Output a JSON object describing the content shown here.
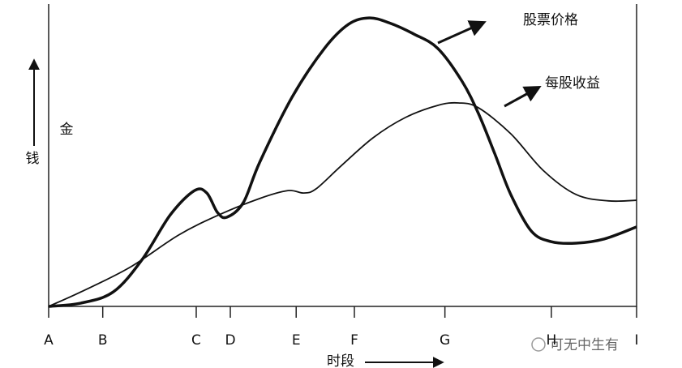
{
  "chart_data": {
    "type": "line",
    "x_label": "时段",
    "y_label": "钱",
    "annotation": "金",
    "watermark": "可无中生有",
    "xlim": [
      0,
      100
    ],
    "ylim": [
      0,
      100
    ],
    "xticks": [
      {
        "value": 0,
        "label": "A"
      },
      {
        "value": 9.2,
        "label": "B"
      },
      {
        "value": 25.1,
        "label": "C"
      },
      {
        "value": 30.9,
        "label": "D"
      },
      {
        "value": 42.1,
        "label": "E"
      },
      {
        "value": 52,
        "label": "F"
      },
      {
        "value": 67.4,
        "label": "G"
      },
      {
        "value": 85.5,
        "label": "H"
      },
      {
        "value": 100,
        "label": "I"
      }
    ],
    "series": [
      {
        "name": "股票价格",
        "color": "#111111",
        "width": 3.5,
        "x": [
          0,
          5.5,
          11.0,
          15.9,
          20.7,
          24.8,
          26.9,
          28.7,
          30.3,
          33.1,
          35.9,
          41.4,
          46.9,
          51.0,
          54.5,
          57.9,
          62.1,
          66.2,
          70.3,
          73.1,
          75.9,
          78.6,
          82.1,
          85.5,
          89.7,
          94.5,
          100
        ],
        "values": [
          0,
          1.1,
          4.8,
          15.5,
          30.3,
          38.3,
          37.5,
          31.1,
          29.5,
          34.3,
          47.7,
          69.2,
          85.3,
          93.3,
          95.4,
          93.8,
          90.1,
          85.3,
          74.5,
          63.8,
          50.4,
          37.0,
          24.9,
          21.4,
          20.9,
          22.3,
          26.3
        ]
      },
      {
        "name": "每股收益",
        "color": "#111111",
        "width": 1.8,
        "x": [
          0,
          5.5,
          13.8,
          22.1,
          29.0,
          35.9,
          40.7,
          43.4,
          45.5,
          49.7,
          55.2,
          60.7,
          66.2,
          69.7,
          73.1,
          78.6,
          84.1,
          89.7,
          95.2,
          100
        ],
        "values": [
          0,
          4.8,
          12.9,
          23.6,
          30.3,
          35.7,
          38.3,
          37.5,
          38.9,
          46.4,
          55.8,
          62.5,
          66.5,
          67.3,
          65.7,
          57.1,
          45.0,
          37.0,
          34.9,
          35.1
        ]
      }
    ]
  }
}
